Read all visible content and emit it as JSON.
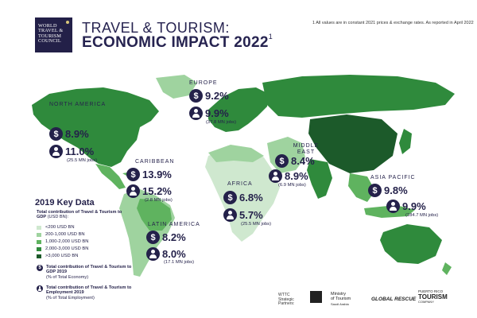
{
  "header": {
    "logo_lines": [
      "WORLD",
      "TRAVEL &",
      "TOURISM",
      "COUNCIL"
    ],
    "title_line1": "TRAVEL & TOURISM:",
    "title_line2": "ECONOMIC IMPACT 2022",
    "title_sup": "1",
    "footnote": "1 All values are in constant 2021 prices & exchange rates. As reported in April 2022"
  },
  "regions": [
    {
      "key": "north_america",
      "name": "NORTH AMERICA",
      "gdp_pct": "8.9%",
      "emp_pct": "11.0%",
      "jobs": "(25.5 MN jobs)"
    },
    {
      "key": "europe",
      "name": "EUROPE",
      "gdp_pct": "9.2%",
      "emp_pct": "9.9%",
      "jobs": "(37.8 MN jobs)"
    },
    {
      "key": "middle_east",
      "name": "MIDDLE EAST",
      "gdp_pct": "8.4%",
      "emp_pct": "8.9%",
      "jobs": "(6.9 MN jobs)"
    },
    {
      "key": "caribbean",
      "name": "CARIBBEAN",
      "gdp_pct": "13.9%",
      "emp_pct": "15.2%",
      "jobs": "(2.8 MN jobs)"
    },
    {
      "key": "africa",
      "name": "AFRICA",
      "gdp_pct": "6.8%",
      "emp_pct": "5.7%",
      "jobs": "(25.5 MN jobs)"
    },
    {
      "key": "asia_pacific",
      "name": "ASIA PACIFIC",
      "gdp_pct": "9.8%",
      "emp_pct": "9.9%",
      "jobs": "(184.7 MN jobs)"
    },
    {
      "key": "latin_america",
      "name": "LATIN AMERICA",
      "gdp_pct": "8.2%",
      "emp_pct": "8.0%",
      "jobs": "(17.1 MN jobs)"
    }
  ],
  "key_data": {
    "title": "2019 Key Data",
    "subtitle_bold": "Total contribution of Travel & Tourism to GDP",
    "subtitle_unit": "(USD BN):",
    "legend": [
      {
        "label": "<200 USD BN",
        "color": "#cfe8cf"
      },
      {
        "label": "200-1,000 USD BN",
        "color": "#9fd39f"
      },
      {
        "label": "1,000-2,000 USD BN",
        "color": "#5fb35f"
      },
      {
        "label": "2,000-3,000 USD BN",
        "color": "#2f8a3c"
      },
      {
        "label": ">3,000 USD BN",
        "color": "#1c5a2a"
      }
    ],
    "icon_gdp_label": "Total contribution of Travel & Tourism to GDP 2019",
    "icon_gdp_unit": "(% of Total Economy)",
    "icon_emp_label": "Total contribution of Travel & Tourism to Employment 2019",
    "icon_emp_unit": "(% of Total Employment)"
  },
  "partners": {
    "label_lines": [
      "WTTC",
      "Strategic",
      "Partners:"
    ],
    "ministry_lines": [
      "Ministry",
      "of Tourism",
      "Saudi Arabia"
    ],
    "global_rescue": "GLOBAL RESCUE",
    "tourism_lines": [
      "PUERTO RICO",
      "TOURISM",
      "COMPANY"
    ]
  },
  "icons": {
    "gdp": "dollar-icon",
    "employment": "person-icon"
  },
  "colors": {
    "navy": "#24214a",
    "dark_green": "#1c5a2a",
    "mid_green": "#2f8a3c",
    "light_green": "#9fd39f",
    "pale_green": "#cfe8cf"
  }
}
